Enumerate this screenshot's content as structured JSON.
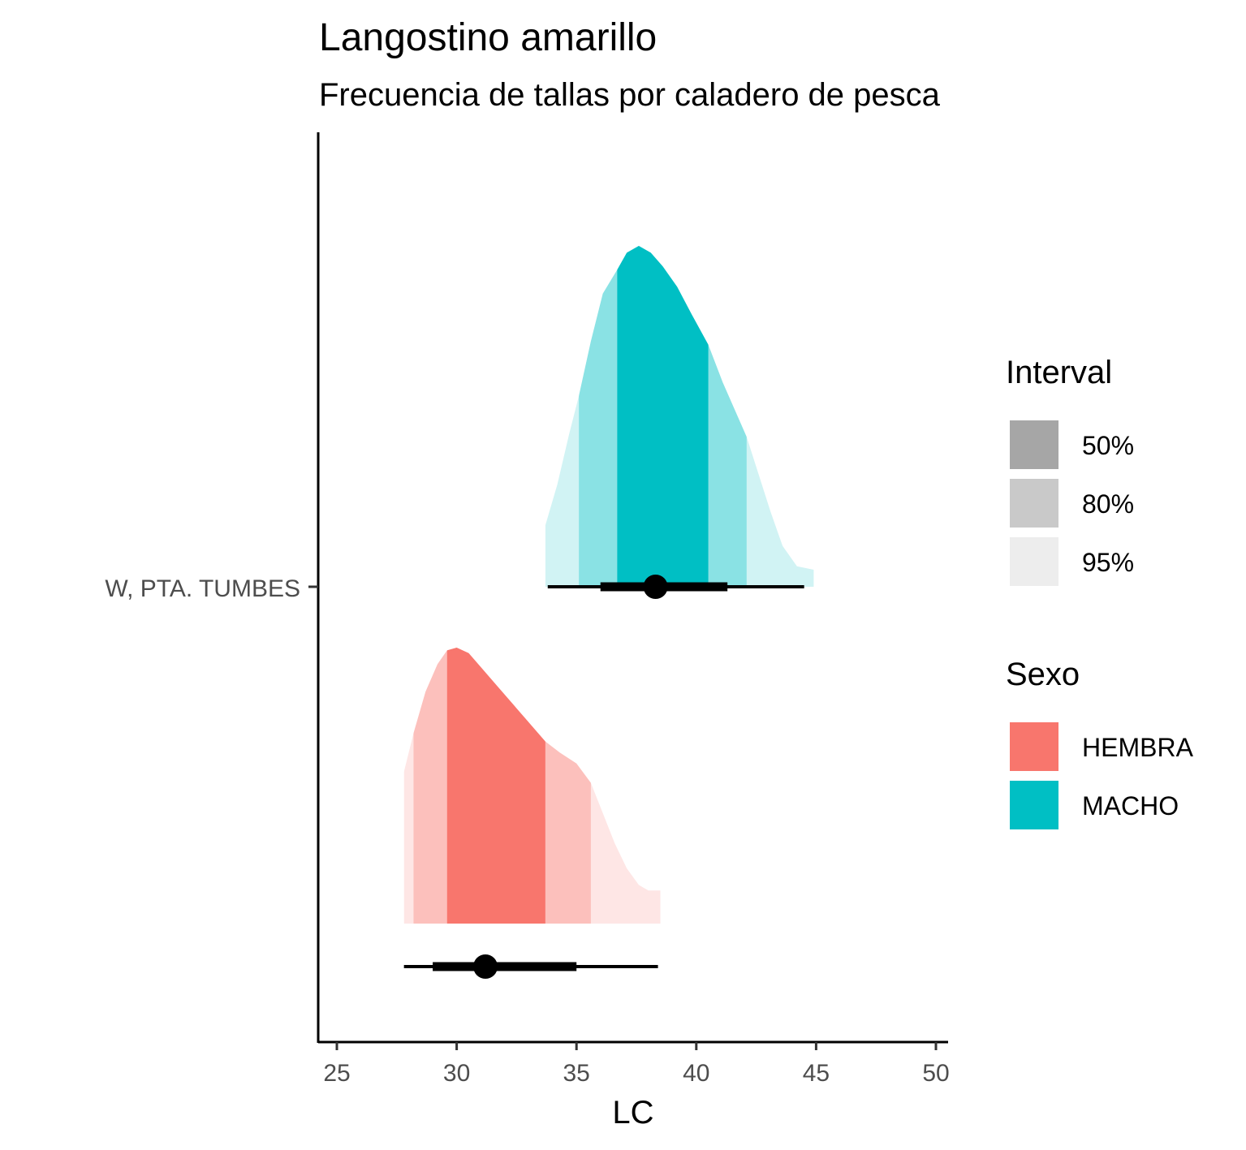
{
  "chart_data": {
    "type": "halfeye",
    "title": "Langostino amarillo",
    "subtitle": "Frecuencia de tallas por caladero de pesca",
    "xlabel": "LC",
    "ylabel": "",
    "xlim": [
      24.2,
      50.4
    ],
    "x_ticks": [
      25,
      30,
      35,
      40,
      45,
      50
    ],
    "y_categories": [
      "W, PTA. TUMBES"
    ],
    "grid": false,
    "legend_position": "right",
    "series": [
      {
        "name": "MACHO",
        "color": "#00BFC4",
        "point": 38.3,
        "interval_66": [
          36.0,
          41.3
        ],
        "interval_95": [
          33.8,
          44.5
        ],
        "bands": {
          "50": [
            36.7,
            40.5
          ],
          "80": [
            35.1,
            42.1
          ],
          "95": [
            33.7,
            44.9
          ]
        },
        "density": [
          [
            33.7,
            0.18
          ],
          [
            34.2,
            0.3
          ],
          [
            34.7,
            0.45
          ],
          [
            35.1,
            0.56
          ],
          [
            35.6,
            0.72
          ],
          [
            36.1,
            0.86
          ],
          [
            36.7,
            0.93
          ],
          [
            37.1,
            0.98
          ],
          [
            37.6,
            1.0
          ],
          [
            38.1,
            0.98
          ],
          [
            38.6,
            0.94
          ],
          [
            39.2,
            0.88
          ],
          [
            39.8,
            0.8
          ],
          [
            40.5,
            0.71
          ],
          [
            41.1,
            0.6
          ],
          [
            41.6,
            0.52
          ],
          [
            42.1,
            0.44
          ],
          [
            42.6,
            0.33
          ],
          [
            43.1,
            0.22
          ],
          [
            43.6,
            0.12
          ],
          [
            44.2,
            0.06
          ],
          [
            44.9,
            0.05
          ]
        ]
      },
      {
        "name": "HEMBRA",
        "color": "#F8766D",
        "point": 31.2,
        "interval_66": [
          29.0,
          35.0
        ],
        "interval_95": [
          27.8,
          38.4
        ],
        "bands": {
          "50": [
            29.6,
            33.7
          ],
          "80": [
            28.2,
            35.6
          ],
          "95": [
            27.8,
            38.5
          ]
        },
        "density": [
          [
            27.8,
            0.55
          ],
          [
            28.2,
            0.69
          ],
          [
            28.7,
            0.84
          ],
          [
            29.2,
            0.94
          ],
          [
            29.6,
            0.99
          ],
          [
            30.0,
            1.0
          ],
          [
            30.5,
            0.98
          ],
          [
            31.0,
            0.93
          ],
          [
            31.7,
            0.86
          ],
          [
            32.4,
            0.79
          ],
          [
            33.1,
            0.72
          ],
          [
            33.7,
            0.66
          ],
          [
            34.3,
            0.62
          ],
          [
            35.0,
            0.58
          ],
          [
            35.6,
            0.51
          ],
          [
            36.1,
            0.4
          ],
          [
            36.6,
            0.29
          ],
          [
            37.1,
            0.2
          ],
          [
            37.6,
            0.14
          ],
          [
            38.0,
            0.12
          ],
          [
            38.5,
            0.12
          ]
        ]
      }
    ],
    "legend": {
      "interval": {
        "title": "Interval",
        "items": [
          "50%",
          "80%",
          "95%"
        ],
        "colors": [
          "#A6A6A6",
          "#C9C9C9",
          "#EDEDED"
        ]
      },
      "sexo": {
        "title": "Sexo",
        "items": [
          "HEMBRA",
          "MACHO"
        ],
        "colors": [
          "#F8766D",
          "#00BFC4"
        ]
      }
    }
  }
}
